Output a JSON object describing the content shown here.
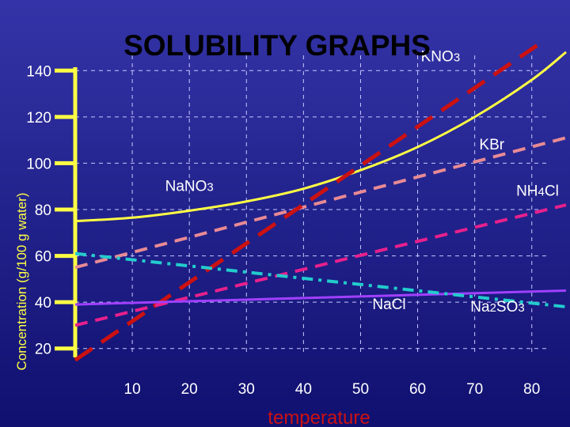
{
  "chart_data": {
    "type": "line",
    "title": "SOLUBILITY GRAPHS",
    "xlabel": "temperature",
    "ylabel": "Concentration (g/100 g water)",
    "xlim": [
      0,
      86
    ],
    "ylim": [
      10,
      150
    ],
    "x_ticks": [
      10,
      20,
      30,
      40,
      50,
      60,
      70,
      80
    ],
    "y_ticks": [
      20,
      40,
      60,
      80,
      100,
      120,
      140
    ],
    "grid": true,
    "series": [
      {
        "name": "KNO3",
        "color": "#ffff44",
        "style": "solid",
        "x": [
          0,
          10,
          20,
          30,
          40,
          50,
          60,
          70,
          80,
          86
        ],
        "y": [
          75,
          76.5,
          79.5,
          83.5,
          89,
          97,
          107,
          120,
          136,
          148
        ]
      },
      {
        "name": "KBr",
        "color": "#e88a94",
        "style": "dash",
        "x": [
          0,
          86
        ],
        "y": [
          55,
          111
        ]
      },
      {
        "name": "NaNO3",
        "color": "#cc1111",
        "style": "longdash",
        "x": [
          0,
          81
        ],
        "y": [
          15,
          151
        ]
      },
      {
        "name": "NH4Cl",
        "color": "#e8208c",
        "style": "dash",
        "x": [
          0,
          86
        ],
        "y": [
          30,
          82
        ]
      },
      {
        "name": "NaCl",
        "color": "#a040ff",
        "style": "solid",
        "x": [
          0,
          86
        ],
        "y": [
          39,
          45
        ]
      },
      {
        "name": "Na2SO3",
        "color": "#22cccc",
        "style": "dashdot",
        "x": [
          0,
          86
        ],
        "y": [
          61,
          38
        ]
      }
    ],
    "labels": [
      {
        "text": "KNO3",
        "x": 64,
        "y": 144
      },
      {
        "text": "KBr",
        "x": 73,
        "y": 106
      },
      {
        "text": "NaNO3",
        "x": 20,
        "y": 88
      },
      {
        "text": "NH4Cl",
        "x": 81,
        "y": 86
      },
      {
        "text": "NaCl",
        "x": 55,
        "y": 37
      },
      {
        "text": "Na2SO3",
        "x": 74,
        "y": 36
      }
    ]
  }
}
